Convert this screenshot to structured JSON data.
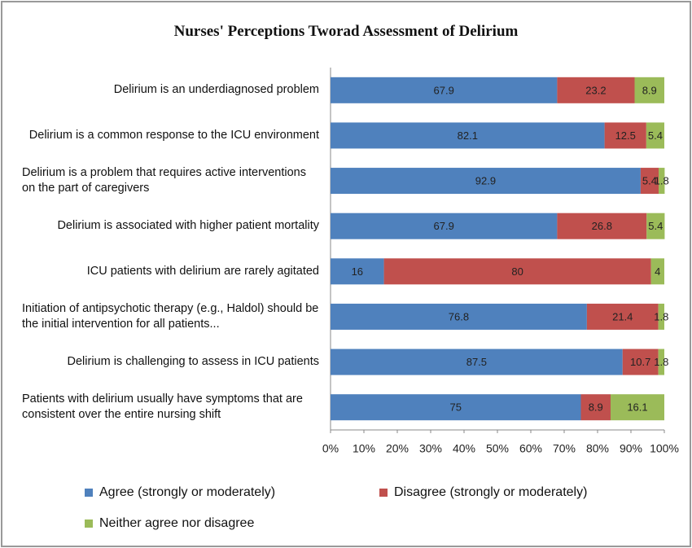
{
  "chart_data": {
    "type": "stacked_barh",
    "title": "Nurses' Perceptions Tworad Assessment of Delirium",
    "categories": [
      "Delirium is an underdiagnosed problem",
      "Delirium is a common response to the ICU environment",
      "Delirium is a problem that requires active interventions on the part of caregivers",
      "Delirium is associated with higher patient mortality",
      "ICU patients with delirium are rarely agitated",
      "Initiation of antipsychotic therapy (e.g., Haldol) should be the initial intervention for all patients...",
      "Delirium is challenging to assess in ICU patients",
      "Patients with delirium usually have symptoms that are consistent over the entire nursing shift"
    ],
    "series": [
      {
        "name": "Agree (strongly or moderately)",
        "color": "#4f81bd",
        "values": [
          67.9,
          82.1,
          92.9,
          67.9,
          16,
          76.8,
          87.5,
          75
        ]
      },
      {
        "name": "Disagree (strongly or moderately)",
        "color": "#c0504d",
        "values": [
          23.2,
          12.5,
          5.4,
          26.8,
          80,
          21.4,
          10.7,
          8.9
        ]
      },
      {
        "name": "Neither agree nor disagree",
        "color": "#9bbb59",
        "values": [
          8.9,
          5.4,
          1.8,
          5.4,
          4,
          1.8,
          1.8,
          16.1
        ]
      }
    ],
    "xlim": [
      0,
      100
    ],
    "xticks": [
      {
        "value": 0,
        "label": "0%"
      },
      {
        "value": 10,
        "label": "10%"
      },
      {
        "value": 20,
        "label": "20%"
      },
      {
        "value": 30,
        "label": "30%"
      },
      {
        "value": 40,
        "label": "40%"
      },
      {
        "value": 50,
        "label": "50%"
      },
      {
        "value": 60,
        "label": "60%"
      },
      {
        "value": 70,
        "label": "70%"
      },
      {
        "value": 80,
        "label": "80%"
      },
      {
        "value": 90,
        "label": "90%"
      },
      {
        "value": 100,
        "label": "100%"
      }
    ],
    "legend": "bottom"
  }
}
